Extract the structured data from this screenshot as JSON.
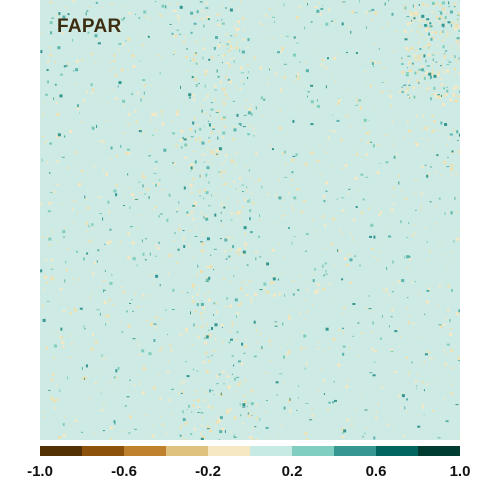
{
  "map": {
    "title": "FAPAR",
    "background_color": "#cdebe4",
    "positive_speckle_colors": [
      "#7fcdbb",
      "#5ab4ac",
      "#35978f"
    ],
    "negative_speckle_colors": [
      "#f6e8c3",
      "#efe0b0"
    ]
  },
  "colorbar": {
    "min": -1.0,
    "max": 1.0,
    "bins": [
      {
        "from": -1.0,
        "to": -0.8,
        "color": "#543005"
      },
      {
        "from": -0.8,
        "to": -0.6,
        "color": "#8c510a"
      },
      {
        "from": -0.6,
        "to": -0.4,
        "color": "#bf812d"
      },
      {
        "from": -0.4,
        "to": -0.2,
        "color": "#dfc27d"
      },
      {
        "from": -0.2,
        "to": 0.0,
        "color": "#f6e8c3"
      },
      {
        "from": 0.0,
        "to": 0.2,
        "color": "#c7eae5"
      },
      {
        "from": 0.2,
        "to": 0.4,
        "color": "#80cdc1"
      },
      {
        "from": 0.4,
        "to": 0.6,
        "color": "#35978f"
      },
      {
        "from": 0.6,
        "to": 0.8,
        "color": "#01665e"
      },
      {
        "from": 0.8,
        "to": 1.0,
        "color": "#003c30"
      }
    ],
    "ticks": [
      {
        "value": -1.0,
        "label": "-1.0"
      },
      {
        "value": -0.6,
        "label": "-0.6"
      },
      {
        "value": -0.2,
        "label": "-0.2"
      },
      {
        "value": 0.2,
        "label": "0.2"
      },
      {
        "value": 0.6,
        "label": "0.6"
      },
      {
        "value": 1.0,
        "label": "1.0"
      }
    ]
  }
}
